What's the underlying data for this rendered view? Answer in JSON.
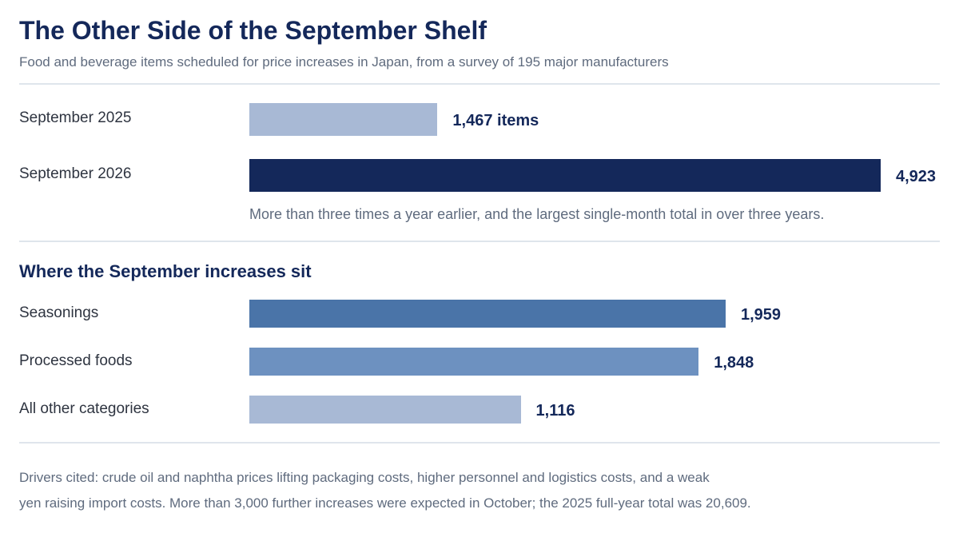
{
  "title": "The Other Side of the September Shelf",
  "subtitle": "Food and beverage items scheduled for price increases in Japan, from a survey of 195 major manufacturers",
  "colors": {
    "title": "#14285a",
    "bar_light": "#a8b9d5",
    "bar_dark": "#14285a",
    "bar_mid": "#4a74a8",
    "bar_mid_light": "#6d91c0",
    "muted_text": "#5f6b7e",
    "rule": "#dfe5ec"
  },
  "chart_data": [
    {
      "type": "bar",
      "orientation": "horizontal",
      "categories": [
        "September 2025",
        "September 2026"
      ],
      "values": [
        1467,
        4923
      ],
      "value_labels": [
        "1,467 items",
        "4,923"
      ],
      "annotation": "More than three times a year earlier, and the largest single-month total in over three years."
    },
    {
      "type": "bar",
      "orientation": "horizontal",
      "title": "Where the September increases sit",
      "categories": [
        "Seasonings",
        "Processed foods",
        "All other categories"
      ],
      "values": [
        1959,
        1848,
        1116
      ],
      "value_labels": [
        "1,959",
        "1,848",
        "1,116"
      ]
    }
  ],
  "footnote": [
    "Drivers cited: crude oil and naphtha prices lifting packaging costs, higher personnel and logistics costs, and a weak",
    "yen raising import costs. More than 3,000 further increases were expected in October; the 2025 full-year total was 20,609."
  ]
}
